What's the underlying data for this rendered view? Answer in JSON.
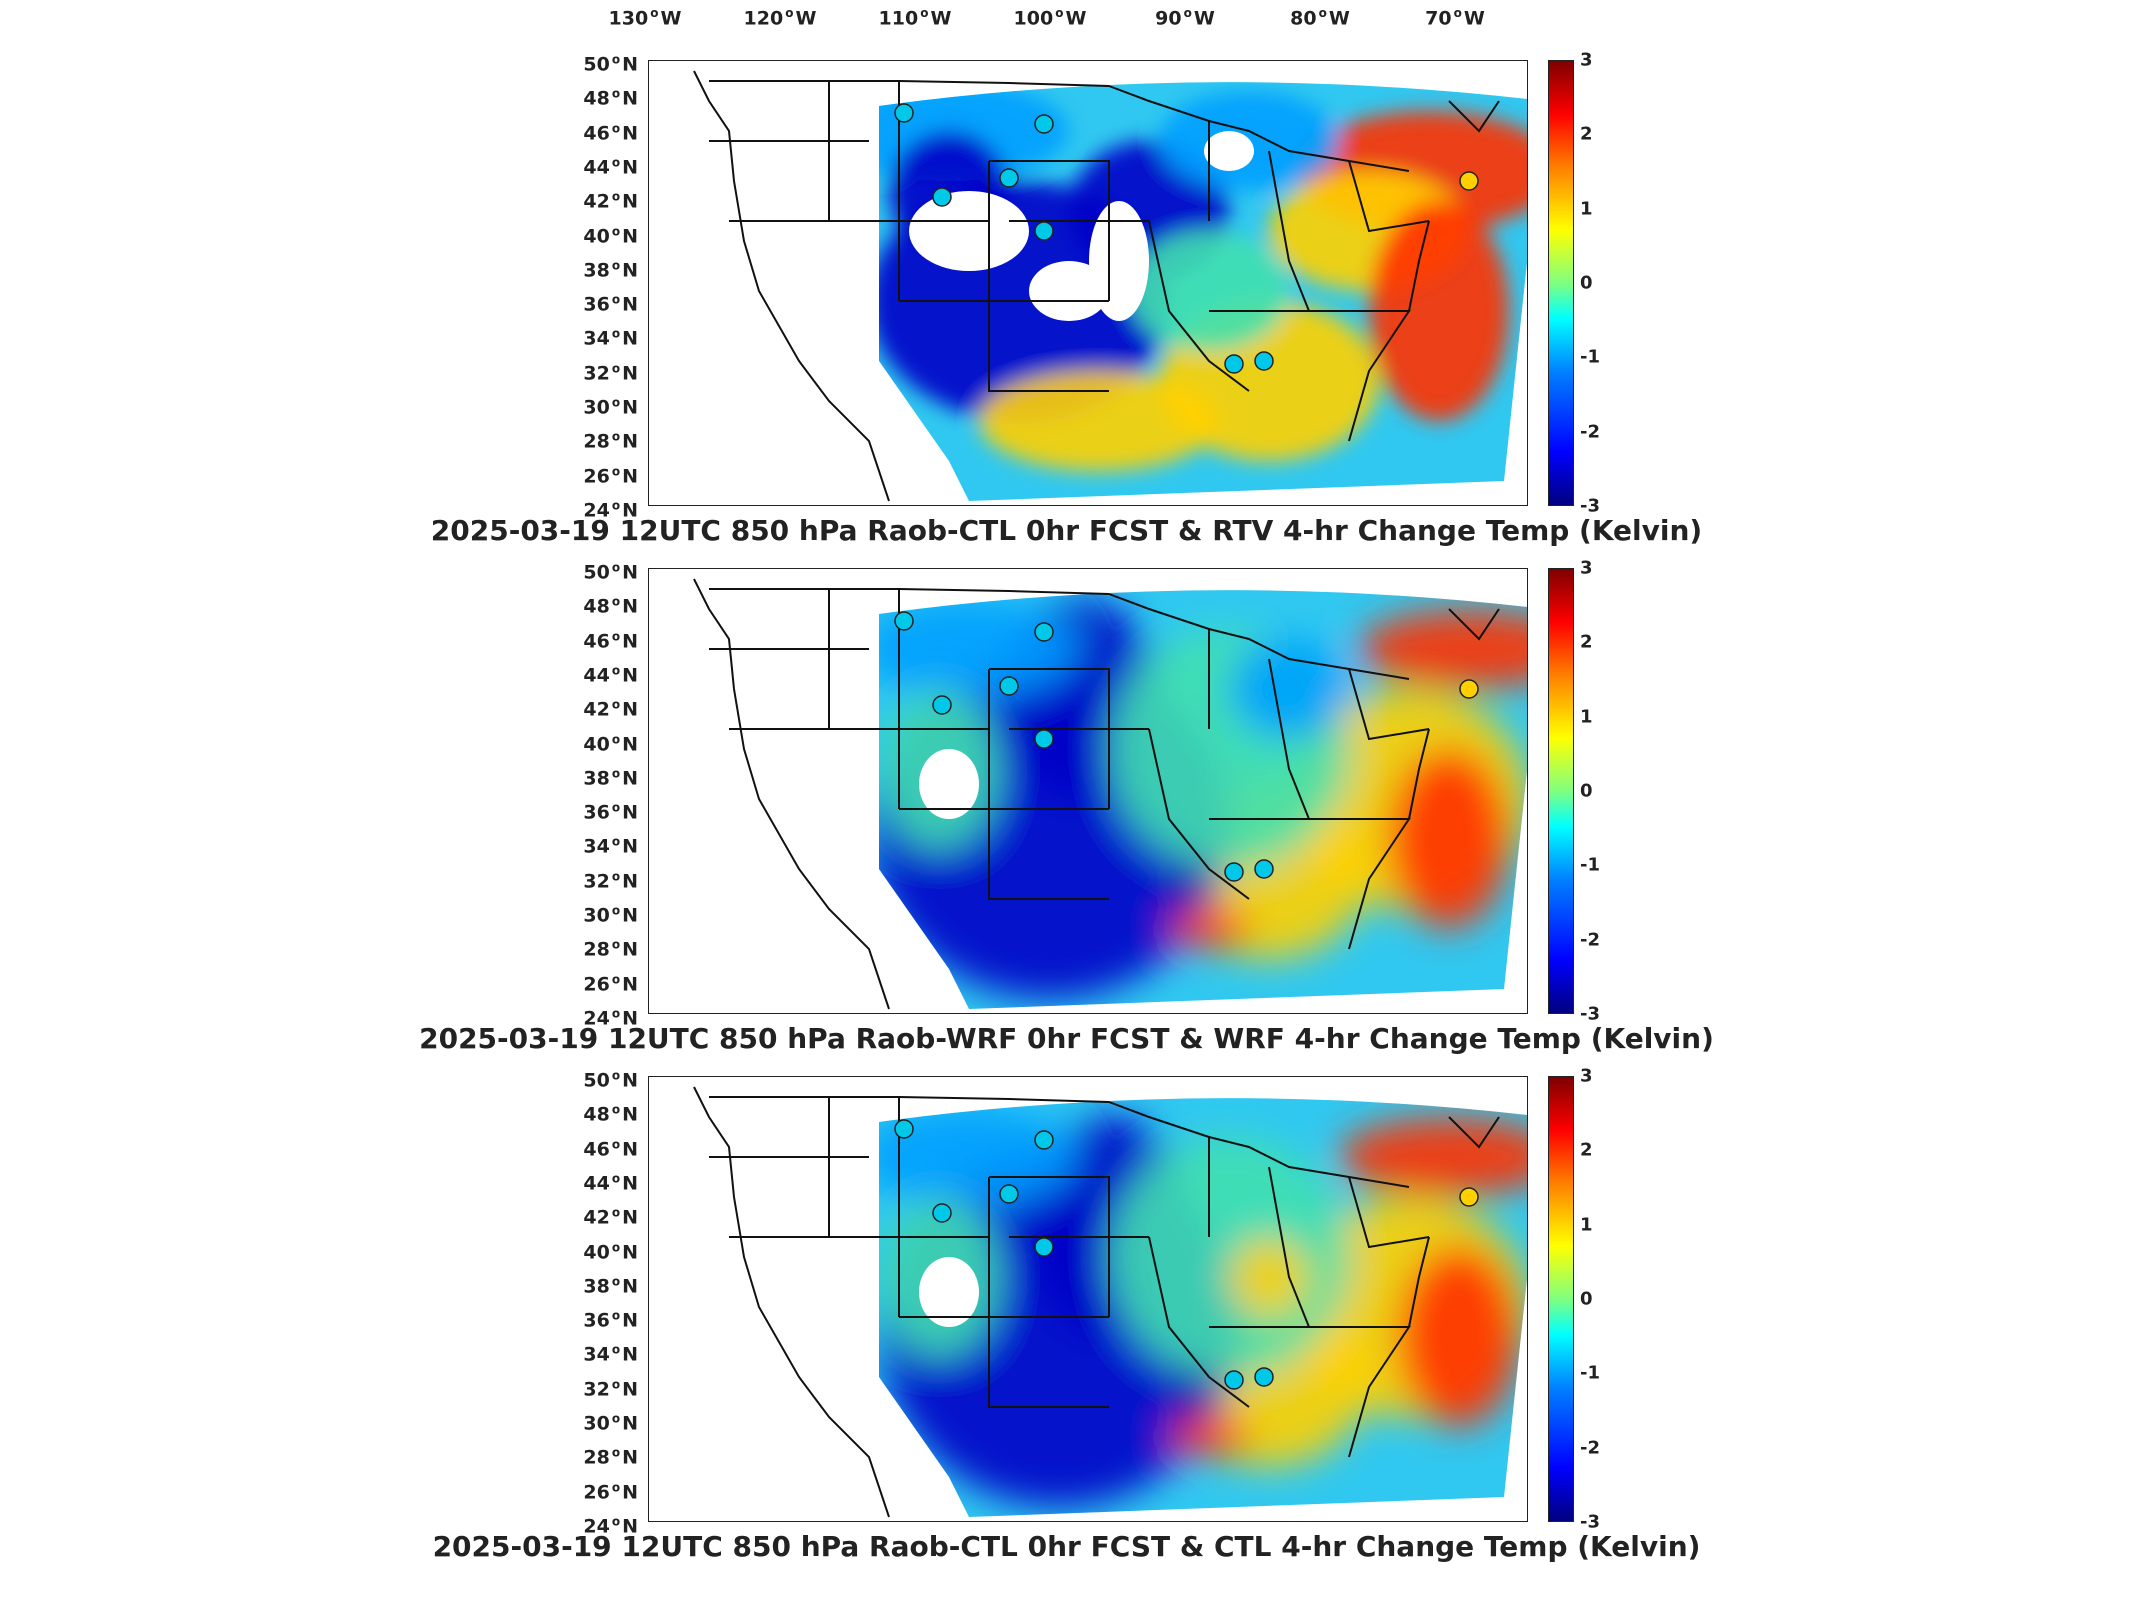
{
  "lon_ticks": [
    {
      "value": "130",
      "hemi": "W"
    },
    {
      "value": "120",
      "hemi": "W"
    },
    {
      "value": "110",
      "hemi": "W"
    },
    {
      "value": "100",
      "hemi": "W"
    },
    {
      "value": "90",
      "hemi": "W"
    },
    {
      "value": "80",
      "hemi": "W"
    },
    {
      "value": "70",
      "hemi": "W"
    }
  ],
  "lat_ticks": [
    {
      "value": "50",
      "hemi": "N"
    },
    {
      "value": "48",
      "hemi": "N"
    },
    {
      "value": "46",
      "hemi": "N"
    },
    {
      "value": "44",
      "hemi": "N"
    },
    {
      "value": "42",
      "hemi": "N"
    },
    {
      "value": "40",
      "hemi": "N"
    },
    {
      "value": "38",
      "hemi": "N"
    },
    {
      "value": "36",
      "hemi": "N"
    },
    {
      "value": "34",
      "hemi": "N"
    },
    {
      "value": "32",
      "hemi": "N"
    },
    {
      "value": "30",
      "hemi": "N"
    },
    {
      "value": "28",
      "hemi": "N"
    },
    {
      "value": "26",
      "hemi": "N"
    },
    {
      "value": "24",
      "hemi": "N"
    }
  ],
  "colorbar": {
    "ticks": [
      "3",
      "2",
      "1",
      "0",
      "-1",
      "-2",
      "-3"
    ],
    "range": [
      -3,
      3
    ],
    "colormap": [
      "#00007f",
      "#0000ff",
      "#00ffff",
      "#ffff00",
      "#ff0000",
      "#7f0000"
    ]
  },
  "panels": [
    {
      "title": "2025-03-19 12UTC 850 hPa Raob-CTL 0hr FCST & RTV 4-hr Change Temp (Kelvin)"
    },
    {
      "title": "2025-03-19 12UTC 850 hPa Raob-WRF 0hr FCST & WRF 4-hr Change Temp (Kelvin)"
    },
    {
      "title": "2025-03-19 12UTC 850 hPa Raob-CTL 0hr FCST & CTL 4-hr Change Temp (Kelvin)"
    }
  ],
  "colors": {
    "cold": "#0000c8",
    "cool": "#00a0ff",
    "neutral": "#40e0b0",
    "warm": "#ffd000",
    "hot": "#ff3000"
  }
}
